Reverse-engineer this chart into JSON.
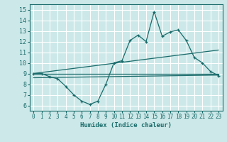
{
  "title": "",
  "xlabel": "Humidex (Indice chaleur)",
  "bg_color": "#cce8e8",
  "grid_color": "#ffffff",
  "line_color": "#1a6b6b",
  "xlim": [
    -0.5,
    23.5
  ],
  "ylim": [
    5.5,
    15.5
  ],
  "xticks": [
    0,
    1,
    2,
    3,
    4,
    5,
    6,
    7,
    8,
    9,
    10,
    11,
    12,
    13,
    14,
    15,
    16,
    17,
    18,
    19,
    20,
    21,
    22,
    23
  ],
  "yticks": [
    6,
    7,
    8,
    9,
    10,
    11,
    12,
    13,
    14,
    15
  ],
  "main_line_x": [
    0,
    1,
    2,
    3,
    4,
    5,
    6,
    7,
    8,
    9,
    10,
    11,
    12,
    13,
    14,
    15,
    16,
    17,
    18,
    19,
    20,
    21,
    22,
    23
  ],
  "main_line_y": [
    9.0,
    9.0,
    8.7,
    8.5,
    7.8,
    7.0,
    6.4,
    6.1,
    6.4,
    8.0,
    10.0,
    10.2,
    12.1,
    12.6,
    12.0,
    14.8,
    12.5,
    12.9,
    13.1,
    12.1,
    10.5,
    10.0,
    9.2,
    8.8
  ],
  "line2_x": [
    0,
    23
  ],
  "line2_y": [
    9.0,
    9.0
  ],
  "line3_x": [
    0,
    23
  ],
  "line3_y": [
    9.0,
    11.2
  ],
  "line4_x": [
    0,
    23
  ],
  "line4_y": [
    8.6,
    8.85
  ]
}
